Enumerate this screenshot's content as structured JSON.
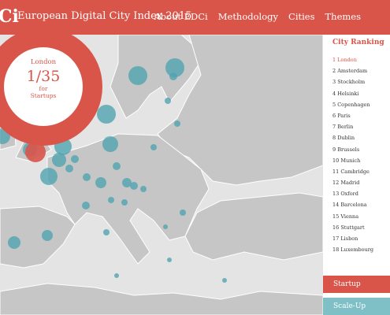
{
  "header": {
    "logo": "Ci",
    "title": "European Digital City Index 2015",
    "nav": [
      "About EDCi",
      "Methodology",
      "Cities",
      "Themes"
    ]
  },
  "highlight": {
    "city": "London",
    "rank": "1/35",
    "for": "for",
    "theme": "Startups"
  },
  "sidebar": {
    "title": "City Ranking",
    "items": [
      "1 London",
      "2 Amsterdam",
      "3 Stockholm",
      "4 Helsinki",
      "5 Copenhagen",
      "6 Paris",
      "7 Berlin",
      "8 Dublin",
      "9 Brussels",
      "10 Munich",
      "11 Cambridge",
      "12 Madrid",
      "13 Oxford",
      "14 Barcelona",
      "15 Vienna",
      "16 Stuttgart",
      "17 Lisbon",
      "18 Luxembourg"
    ],
    "buttons": [
      "Startup",
      "Scale-Up"
    ]
  }
}
